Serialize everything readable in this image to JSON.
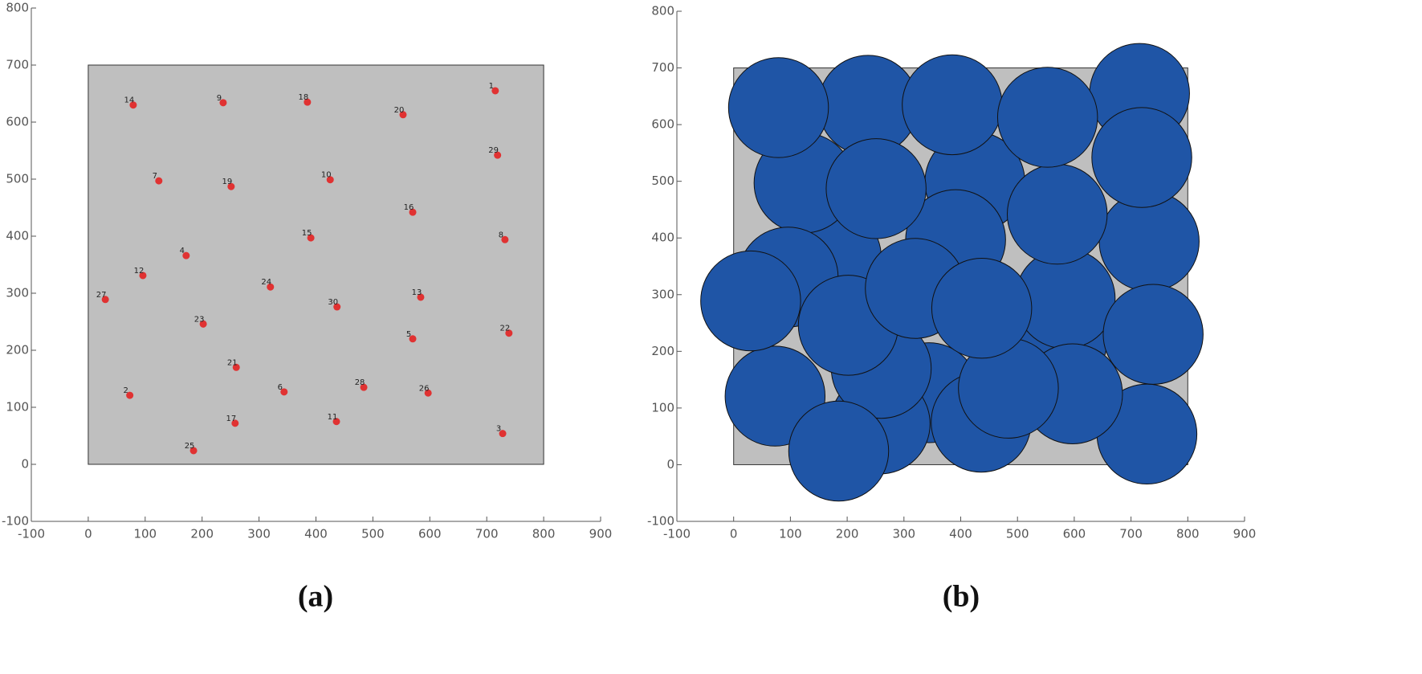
{
  "chart_data": [
    {
      "type": "scatter",
      "caption": "(a)",
      "xlim": [
        -100,
        900
      ],
      "ylim": [
        -100,
        800
      ],
      "xticks": [
        -100,
        0,
        100,
        200,
        300,
        400,
        500,
        600,
        700,
        800,
        900
      ],
      "yticks": [
        -100,
        0,
        100,
        200,
        300,
        400,
        500,
        600,
        700,
        800
      ],
      "region": {
        "x": [
          0,
          800
        ],
        "y": [
          0,
          700
        ],
        "color": "#bfbfbf"
      },
      "color": "#e03232",
      "labels": [
        "1",
        "2",
        "3",
        "4",
        "5",
        "6",
        "7",
        "8",
        "9",
        "10",
        "11",
        "12",
        "13",
        "14",
        "15",
        "16",
        "17",
        "18",
        "19",
        "20",
        "21",
        "22",
        "23",
        "24",
        "25",
        "26",
        "27",
        "28",
        "29",
        "30"
      ],
      "x": [
        715,
        73,
        728,
        172,
        570,
        344,
        124,
        732,
        237,
        425,
        436,
        96,
        584,
        79,
        391,
        570,
        258,
        385,
        251,
        553,
        260,
        739,
        202,
        320,
        185,
        597,
        30,
        484,
        719,
        437
      ],
      "y": [
        655,
        121,
        54,
        366,
        220,
        127,
        497,
        394,
        634,
        499,
        75,
        331,
        293,
        630,
        397,
        442,
        72,
        635,
        487,
        613,
        170,
        230,
        246,
        311,
        24,
        125,
        289,
        135,
        542,
        276
      ]
    },
    {
      "type": "circles",
      "caption": "(b)",
      "xlim": [
        -100,
        900
      ],
      "ylim": [
        -100,
        800
      ],
      "xticks": [
        -100,
        0,
        100,
        200,
        300,
        400,
        500,
        600,
        700,
        800,
        900
      ],
      "yticks": [
        -100,
        0,
        100,
        200,
        300,
        400,
        500,
        600,
        700,
        800
      ],
      "region": {
        "x": [
          0,
          800
        ],
        "y": [
          0,
          700
        ],
        "color": "#bfbfbf"
      },
      "color": "#1f55a6",
      "radius": 88,
      "x": [
        715,
        73,
        728,
        172,
        570,
        344,
        124,
        732,
        237,
        425,
        436,
        96,
        584,
        79,
        391,
        570,
        258,
        385,
        251,
        553,
        260,
        739,
        202,
        320,
        185,
        597,
        30,
        484,
        719,
        437
      ],
      "y": [
        655,
        121,
        54,
        366,
        220,
        127,
        497,
        394,
        634,
        499,
        75,
        331,
        293,
        630,
        397,
        442,
        72,
        635,
        487,
        613,
        170,
        230,
        246,
        311,
        24,
        125,
        289,
        135,
        542,
        276
      ]
    }
  ]
}
